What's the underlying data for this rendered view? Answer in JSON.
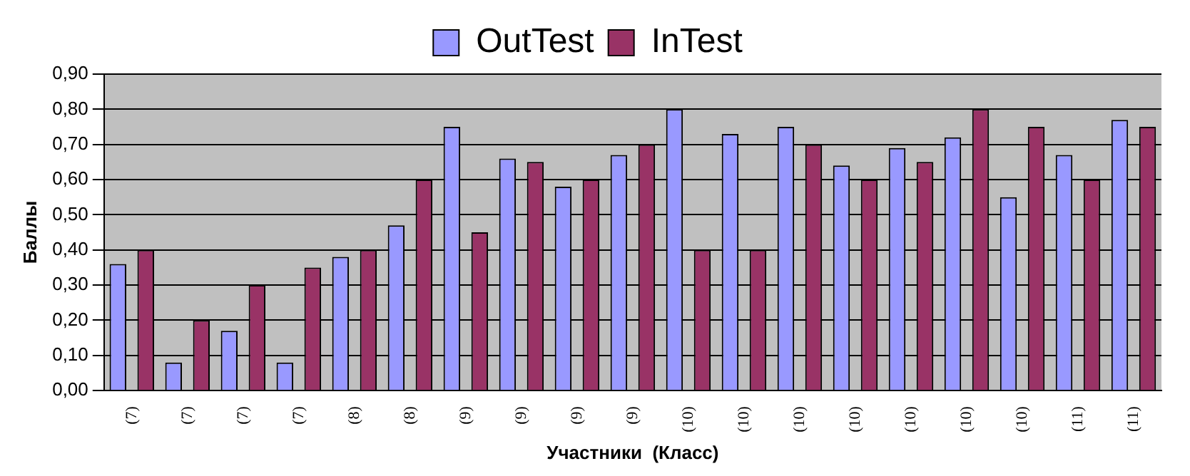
{
  "chart_data": {
    "type": "bar",
    "xlabel": "Участники  (Класс)",
    "ylabel": "Баллы",
    "categories": [
      "(7)",
      "(7)",
      "(7)",
      "(7)",
      "(8)",
      "(8)",
      "(9)",
      "(9)",
      "(9)",
      "(9)",
      "(10)",
      "(10)",
      "(10)",
      "(10)",
      "(10)",
      "(10)",
      "(10)",
      "(11)",
      "(11)"
    ],
    "series": [
      {
        "name": "OutTest",
        "color": "#9999ff",
        "values": [
          0.36,
          0.08,
          0.17,
          0.08,
          0.38,
          0.47,
          0.75,
          0.66,
          0.58,
          0.67,
          0.8,
          0.73,
          0.75,
          0.64,
          0.69,
          0.72,
          0.55,
          0.67,
          0.77
        ]
      },
      {
        "name": "InTest",
        "color": "#993366",
        "values": [
          0.4,
          0.2,
          0.3,
          0.35,
          0.4,
          0.6,
          0.45,
          0.65,
          0.6,
          0.7,
          0.4,
          0.4,
          0.7,
          0.6,
          0.65,
          0.8,
          0.75,
          0.6,
          0.75
        ]
      }
    ],
    "ylim": [
      0,
      0.9
    ],
    "yticks": [
      {
        "value": 0,
        "label": "0,00"
      },
      {
        "value": 0.1,
        "label": "0,10"
      },
      {
        "value": 0.2,
        "label": "0,20"
      },
      {
        "value": 0.3,
        "label": "0,30"
      },
      {
        "value": 0.4,
        "label": "0,40"
      },
      {
        "value": 0.5,
        "label": "0,50"
      },
      {
        "value": 0.6,
        "label": "0,60"
      },
      {
        "value": 0.7,
        "label": "0,70"
      },
      {
        "value": 0.8,
        "label": "0,80"
      },
      {
        "value": 0.9,
        "label": "0,90"
      }
    ],
    "grid": "y",
    "legend": "top"
  }
}
